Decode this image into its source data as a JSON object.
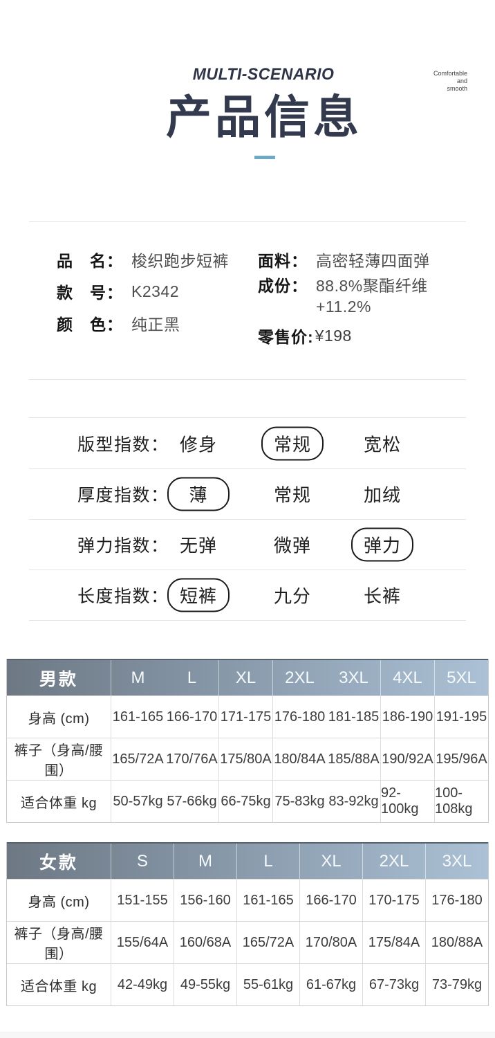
{
  "header": {
    "eyebrow": "MULTI-SCENARIO",
    "title": "产品信息",
    "tagline_lines": [
      "Comfortable",
      "and",
      "smooth"
    ],
    "accent_color": "#6FA9C5",
    "title_color": "#333A4D"
  },
  "product_info": {
    "left_rows": [
      {
        "label": "品　名：",
        "value": "梭织跑步短裤"
      },
      {
        "label": "款　号：",
        "value": "K2342"
      },
      {
        "label": "颜　色：",
        "value": "纯正黑"
      }
    ],
    "right_rows": [
      {
        "label": "面料：",
        "value": "高密轻薄四面弹"
      },
      {
        "label": "成份：",
        "value": "88.8%聚酯纤维",
        "value_line2": "+11.2%"
      },
      {
        "label": "零售价:",
        "value": "¥198"
      }
    ]
  },
  "index_section": {
    "rows": [
      {
        "label": "版型指数：",
        "options": [
          {
            "text": "修身",
            "selected": false
          },
          {
            "text": "常规",
            "selected": true
          },
          {
            "text": "宽松",
            "selected": false
          }
        ]
      },
      {
        "label": "厚度指数：",
        "options": [
          {
            "text": "薄",
            "selected": true
          },
          {
            "text": "常规",
            "selected": false
          },
          {
            "text": "加绒",
            "selected": false
          }
        ]
      },
      {
        "label": "弹力指数：",
        "options": [
          {
            "text": "无弹",
            "selected": false
          },
          {
            "text": "微弹",
            "selected": false
          },
          {
            "text": "弹力",
            "selected": true
          }
        ]
      },
      {
        "label": "长度指数：",
        "options": [
          {
            "text": "短裤",
            "selected": true
          },
          {
            "text": "九分",
            "selected": false
          },
          {
            "text": "长裤",
            "selected": false
          }
        ]
      }
    ]
  },
  "tables": [
    {
      "title": "男款",
      "sizes": [
        "M",
        "L",
        "XL",
        "2XL",
        "3XL",
        "4XL",
        "5XL"
      ],
      "rows": [
        {
          "label": "身高 (cm)",
          "values": [
            "161-165",
            "166-170",
            "171-175",
            "176-180",
            "181-185",
            "186-190",
            "191-195"
          ]
        },
        {
          "label": "裤子（身高/腰围）",
          "values": [
            "165/72A",
            "170/76A",
            "175/80A",
            "180/84A",
            "185/88A",
            "190/92A",
            "195/96A"
          ]
        },
        {
          "label": "适合体重 kg",
          "values": [
            "50-57kg",
            "57-66kg",
            "66-75kg",
            "75-83kg",
            "83-92kg",
            "92-100kg",
            "100-108kg"
          ]
        }
      ]
    },
    {
      "title": "女款",
      "sizes": [
        "S",
        "M",
        "L",
        "XL",
        "2XL",
        "3XL"
      ],
      "rows": [
        {
          "label": "身高 (cm)",
          "values": [
            "151-155",
            "156-160",
            "161-165",
            "166-170",
            "170-175",
            "176-180"
          ]
        },
        {
          "label": "裤子（身高/腰围）",
          "values": [
            "155/64A",
            "160/68A",
            "165/72A",
            "170/80A",
            "175/84A",
            "180/88A"
          ]
        },
        {
          "label": "适合体重 kg",
          "values": [
            "42-49kg",
            "49-55kg",
            "55-61kg",
            "61-67kg",
            "67-73kg",
            "73-79kg"
          ]
        }
      ]
    }
  ],
  "colors": {
    "title_navy": "#333A4D",
    "accent_blue": "#6FA9C5",
    "table_header_gradient_left": "#6D7884",
    "table_header_gradient_right": "#ACC1D5"
  }
}
